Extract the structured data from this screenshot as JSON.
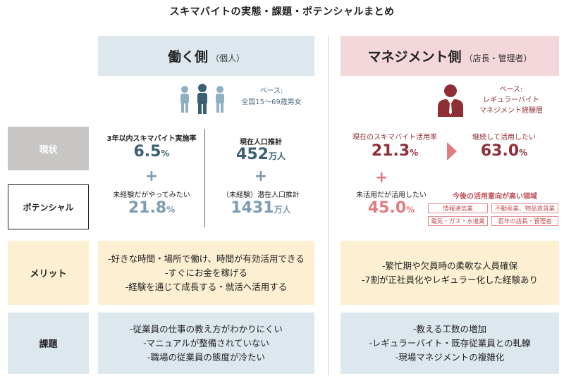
{
  "title": "スキマバイトの実態・課題・ポテンシャルまとめ",
  "left_header": {
    "main": "働く側",
    "sub": "（個人）"
  },
  "right_header": {
    "main": "マネジメント側",
    "sub": "（店長・管理者）"
  },
  "row_labels": {
    "current": "現状",
    "potential": "ポテンシャル",
    "merit": "メリット",
    "issues": "課題"
  },
  "left_base": {
    "line1": "ベース:",
    "line2": "全国15～69歳男女"
  },
  "right_base": {
    "line1": "ベース:",
    "line2": "レギュラーバイト",
    "line3": "マネジメント経験層"
  },
  "left_stats": {
    "rate_label": "3年以内スキマバイト実施率",
    "rate_value": "6.5",
    "rate_unit": "%",
    "want_label": "未経験だがやってみたい",
    "want_value": "21.8",
    "want_unit": "%",
    "pop_label": "現在人口推計",
    "pop_value": "452",
    "pop_unit": "万人",
    "latent_label": "（未経験）潜在人口推計",
    "latent_value": "1431",
    "latent_unit": "万人",
    "plus": "+"
  },
  "right_stats": {
    "use_label": "現在のスキマバイト活用率",
    "use_value": "21.3",
    "use_unit": "%",
    "continue_label": "継続して活用したい",
    "continue_value": "63.0",
    "continue_unit": "%",
    "want_label": "未活用だが活用したい",
    "want_value": "45.0",
    "want_unit": "%",
    "intent_label": "今後の活用意向が高い領域",
    "tags": [
      "情報通信業",
      "不動産業、物品賃貸業",
      "電気・ガス・水道業",
      "若年の店長・管理者"
    ],
    "plus": "+"
  },
  "merit_left": [
    "-好きな時間・場所で働け、時間が有効活用できる",
    "-すぐにお金を稼げる",
    "-経験を通じて成長する・就活へ活用する"
  ],
  "merit_right": [
    "-繁忙期や欠員時の柔軟な人員確保",
    "-7割が正社員化やレギュラー化した経験あり"
  ],
  "issues_left": [
    "-従業員の仕事の教え方がわかりにくい",
    "-マニュアルが整備されていない",
    "-職場の従業員の態度が冷たい"
  ],
  "issues_right": [
    "-教える工数の増加",
    "-レギュラーバイト・既存従業員との軋轢",
    "-現場マネジメントの複雑化"
  ],
  "colors": {
    "blue_dark": "#3b5f73",
    "blue_light": "#7a9bb0",
    "red_dark": "#8e2f35",
    "red_light": "#e07c80",
    "header_blue": "#dde7ee",
    "header_pink": "#f4d7da",
    "merit_bg": "#fcefd2",
    "label_gray": "#c7c6c4"
  },
  "icons": {
    "people": "people-group-icon",
    "manager": "manager-person-icon",
    "arrow": "right-arrow-icon"
  }
}
